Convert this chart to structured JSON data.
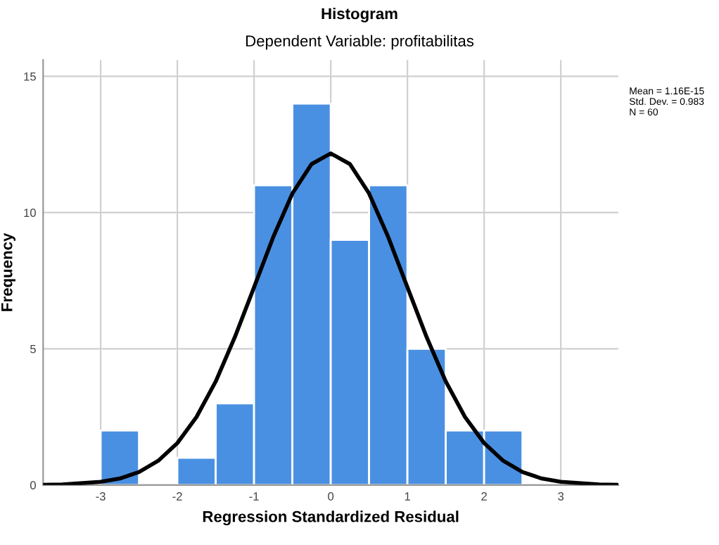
{
  "chart_data": {
    "type": "histogram",
    "title": "Histogram",
    "subtitle": "Dependent Variable: profitabilitas",
    "xlabel": "Regression Standardized Residual",
    "ylabel": "Frequency",
    "bins": [
      -3,
      -2.5,
      -2,
      -1.5,
      -1,
      -0.5,
      0,
      0.5,
      1,
      1.5,
      2,
      2.5
    ],
    "values": [
      2,
      0,
      1,
      3,
      11,
      14,
      9,
      11,
      5,
      2,
      2
    ],
    "color": "#4a90e2",
    "series": [
      {
        "type": "line",
        "color": "#000000",
        "x": [
          -3.75,
          -3.5,
          -3,
          -2.75,
          -2.5,
          -2.25,
          -2,
          -1.75,
          -1.5,
          -1.25,
          -1,
          -0.75,
          -0.5,
          -0.25,
          0,
          0.25,
          0.5,
          0.75,
          1,
          1.25,
          1.5,
          1.75,
          2,
          2.25,
          2.5,
          2.75,
          3,
          3.5,
          3.75
        ],
        "values": [
          0.01,
          0.02,
          0.12,
          0.24,
          0.48,
          0.89,
          1.54,
          2.5,
          3.8,
          5.43,
          7.26,
          9.1,
          10.7,
          11.78,
          12.17,
          11.78,
          10.7,
          9.1,
          7.26,
          5.43,
          3.8,
          2.5,
          1.54,
          0.89,
          0.48,
          0.24,
          0.12,
          0.02,
          0.01
        ]
      }
    ],
    "annotations": [
      "Mean = 1.16E-15\nStd. Dev. = 0.983\nN = 60"
    ],
    "xlim": [
      -3.75,
      3.75
    ],
    "ylim": [
      0,
      15.6
    ],
    "xticks": [
      -3,
      -2,
      -1,
      0,
      1,
      2,
      3
    ],
    "yticks": [
      0,
      5,
      10,
      15
    ],
    "grid": true,
    "legend": false
  }
}
